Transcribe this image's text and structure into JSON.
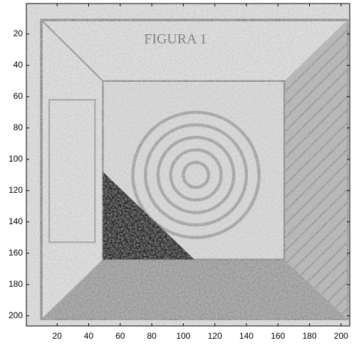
{
  "chart_data": {
    "type": "image",
    "annotation": "FIGURA 1",
    "xlim": [
      0.5,
      205.5
    ],
    "ylim": [
      0.5,
      206.5
    ],
    "xticks": [
      20,
      40,
      60,
      80,
      100,
      120,
      140,
      160,
      180,
      200
    ],
    "yticks": [
      20,
      40,
      60,
      80,
      100,
      120,
      140,
      160,
      180,
      200
    ],
    "y_reversed": true
  }
}
